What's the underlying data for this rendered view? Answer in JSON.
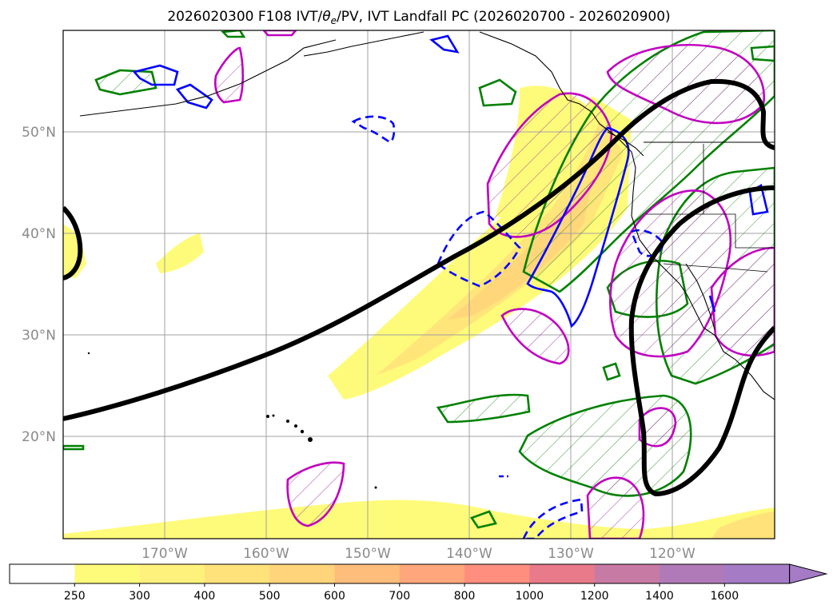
{
  "title": {
    "prefix": "2026020300 F108 IVT/",
    "theta": "θ",
    "theta_sub": "e",
    "suffix": "/PV, IVT Landfall PC (2026020700 - 2026020900)"
  },
  "map": {
    "lon_ticks": [
      "170°W",
      "160°W",
      "150°W",
      "140°W",
      "130°W",
      "120°W"
    ],
    "lat_ticks": [
      "50°N",
      "40°N",
      "30°N",
      "20°N"
    ],
    "contour_colors": {
      "thick_line": "#000000",
      "green": "#008000",
      "magenta": "#c000c0",
      "blue": "#0000ff"
    }
  },
  "colorbar": {
    "labels": [
      "250",
      "300",
      "400",
      "500",
      "600",
      "700",
      "800",
      "1000",
      "1200",
      "1400",
      "1600"
    ],
    "colors": [
      "#ffffff",
      "#fffb7a",
      "#fff27c",
      "#ffe27a",
      "#ffd47a",
      "#ffbd7c",
      "#ffa67c",
      "#ff8e7e",
      "#e87a8a",
      "#c77aa4",
      "#b07ab8",
      "#a57bc6"
    ]
  }
}
